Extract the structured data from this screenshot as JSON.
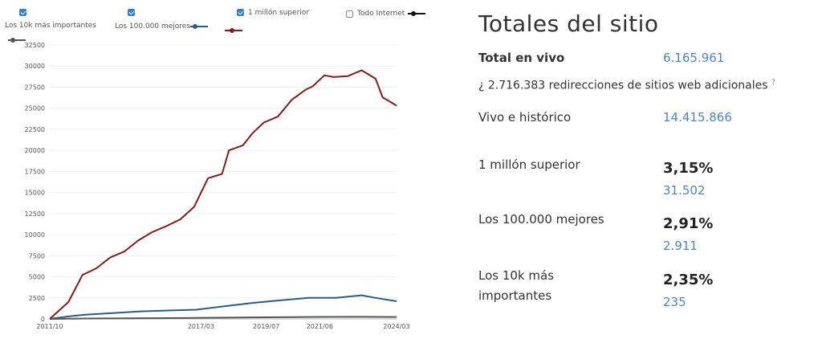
{
  "legend": [
    {
      "label": "Los 10k más importantes",
      "checked": true,
      "color": "#555555"
    },
    {
      "label": "Los 100.000 mejores",
      "checked": true,
      "color": "#2c5b8e"
    },
    {
      "label": "1 millón superior",
      "checked": true,
      "color": "#8b1a1a"
    },
    {
      "label": "Todo Internet",
      "checked": false,
      "color": "#111111"
    }
  ],
  "chart_data": {
    "type": "line",
    "x_tick_labels": [
      "2011/10",
      "2017/03",
      "2019/07",
      "2021/06",
      "2024/03"
    ],
    "x_tick_dates": [
      "2011-10",
      "2017-03",
      "2019-07",
      "2021-06",
      "2024-03"
    ],
    "y_ticks": [
      0,
      2500,
      5000,
      7500,
      10000,
      12500,
      15000,
      17500,
      20000,
      22500,
      25000,
      27500,
      30000,
      32500
    ],
    "ylim": [
      0,
      32500
    ],
    "xlim": [
      "2011-10",
      "2024-03"
    ],
    "series": [
      {
        "name": "1 millón superior",
        "color": "#8b1a1a",
        "points": [
          [
            "2011-10",
            0
          ],
          [
            "2012-06",
            2000
          ],
          [
            "2012-12",
            5200
          ],
          [
            "2013-06",
            6000
          ],
          [
            "2013-12",
            7300
          ],
          [
            "2014-06",
            8000
          ],
          [
            "2014-12",
            9300
          ],
          [
            "2015-06",
            10300
          ],
          [
            "2015-12",
            11000
          ],
          [
            "2016-06",
            11800
          ],
          [
            "2016-12",
            13300
          ],
          [
            "2017-06",
            16700
          ],
          [
            "2017-12",
            17200
          ],
          [
            "2018-03",
            20000
          ],
          [
            "2018-09",
            20600
          ],
          [
            "2019-01",
            22000
          ],
          [
            "2019-06",
            23300
          ],
          [
            "2019-12",
            24000
          ],
          [
            "2020-06",
            26000
          ],
          [
            "2020-12",
            27200
          ],
          [
            "2021-03",
            27600
          ],
          [
            "2021-08",
            28900
          ],
          [
            "2021-12",
            28700
          ],
          [
            "2022-06",
            28800
          ],
          [
            "2022-12",
            29500
          ],
          [
            "2023-06",
            28500
          ],
          [
            "2023-09",
            26300
          ],
          [
            "2024-03",
            25300
          ]
        ]
      },
      {
        "name": "Los 100.000 mejores",
        "color": "#2c5b8e",
        "points": [
          [
            "2011-10",
            0
          ],
          [
            "2012-06",
            300
          ],
          [
            "2013-01",
            500
          ],
          [
            "2014-01",
            700
          ],
          [
            "2015-01",
            900
          ],
          [
            "2016-01",
            1000
          ],
          [
            "2017-01",
            1100
          ],
          [
            "2018-01",
            1500
          ],
          [
            "2019-01",
            1900
          ],
          [
            "2020-01",
            2200
          ],
          [
            "2021-01",
            2500
          ],
          [
            "2022-01",
            2500
          ],
          [
            "2022-12",
            2800
          ],
          [
            "2023-06",
            2500
          ],
          [
            "2024-03",
            2100
          ]
        ]
      },
      {
        "name": "Los 10k más importantes",
        "color": "#555555",
        "points": [
          [
            "2011-10",
            0
          ],
          [
            "2013-01",
            50
          ],
          [
            "2016-01",
            100
          ],
          [
            "2019-01",
            180
          ],
          [
            "2021-06",
            240
          ],
          [
            "2022-12",
            250
          ],
          [
            "2024-03",
            230
          ]
        ]
      }
    ]
  },
  "site_totals": {
    "title": "Totales del sitio",
    "live_label": "Total en vivo",
    "live_value": "6.165.961",
    "redirects_note": "¿ 2.716.383 redirecciones de sitios web adicionales",
    "redirects_help": "?",
    "historic_label": "Vivo e histórico",
    "historic_value": "14.415.866",
    "rows": [
      {
        "label_line1": "1 millón superior",
        "label_line2": "",
        "percent": "3,15%",
        "count": "31.502"
      },
      {
        "label_line1": "Los 100.000 mejores",
        "label_line2": "",
        "percent": "2,91%",
        "count": "2.911"
      },
      {
        "label_line1": "Los 10k más",
        "label_line2": "importantes",
        "percent": "2,35%",
        "count": "235"
      }
    ]
  }
}
